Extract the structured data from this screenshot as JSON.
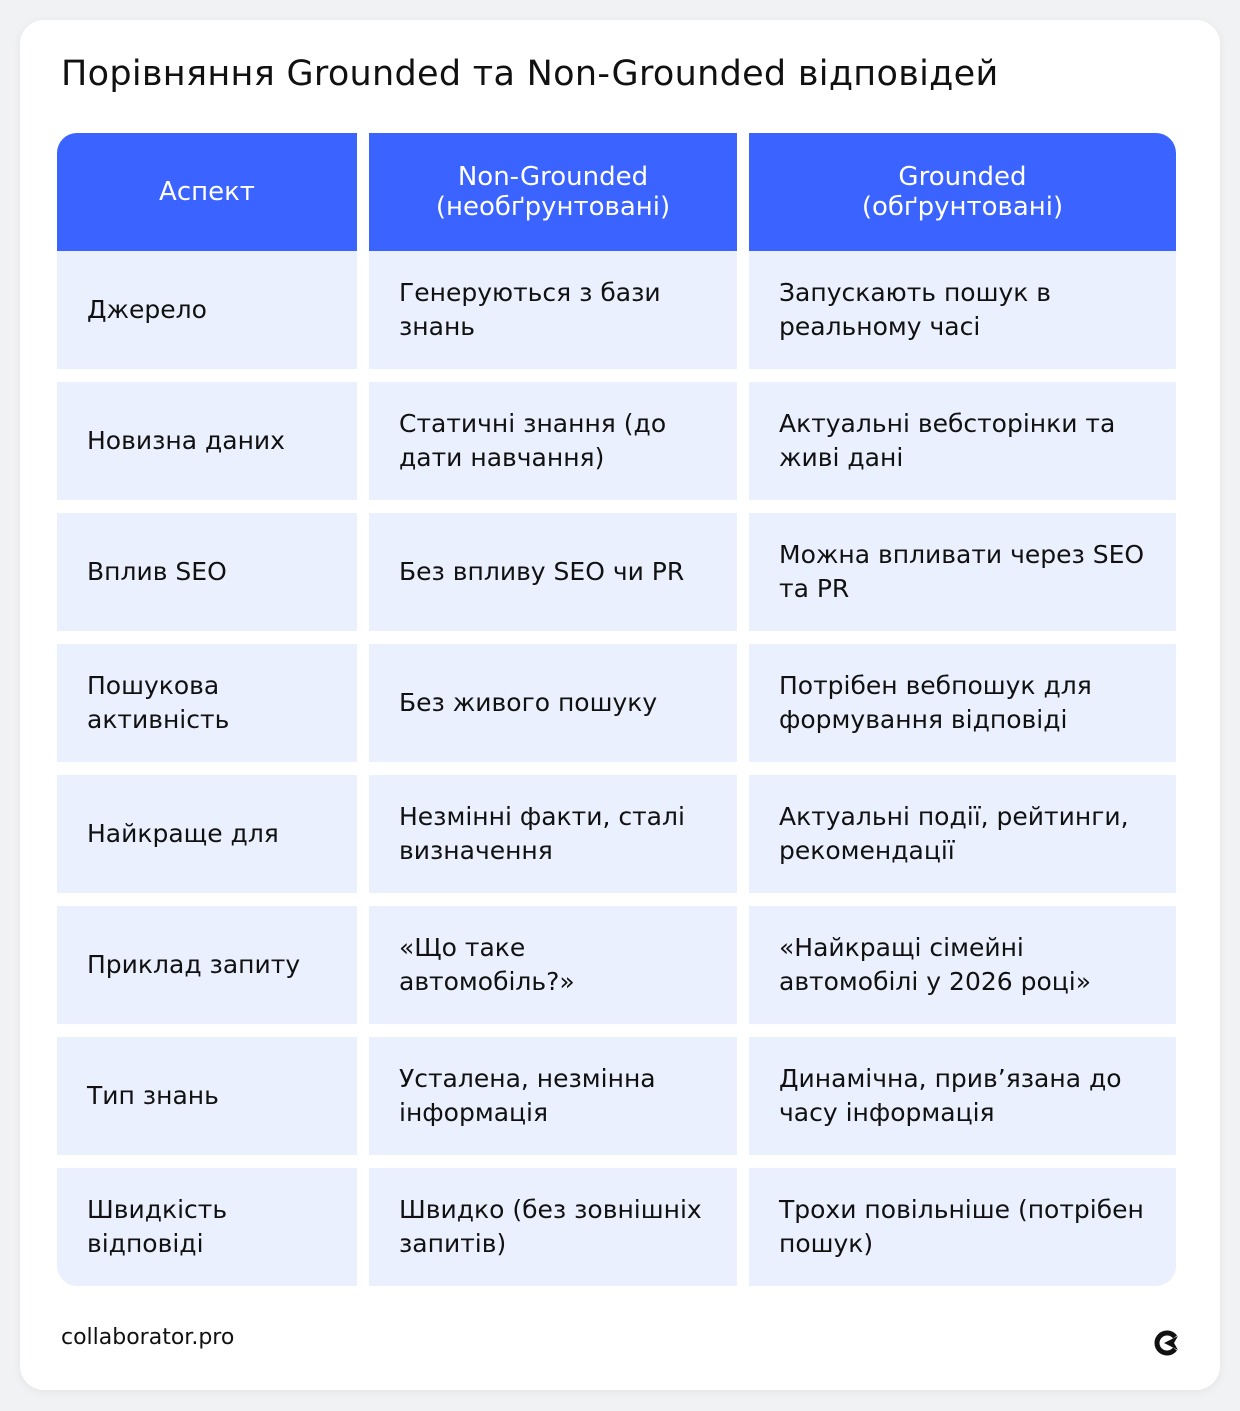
{
  "title": "Порівняння Grounded та Non-Grounded відповідей",
  "colors": {
    "header": "#3a63ff",
    "cell": "#ebf0fe"
  },
  "headers": [
    "Аспект",
    "Non-Grounded\n(необґрунтовані)",
    "Grounded\n(обґрунтовані)"
  ],
  "rows": [
    [
      "Джерело",
      "Генеруються з бази знань",
      "Запускають пошук в реальному часі"
    ],
    [
      "Новизна даних",
      "Статичні знання (до дати навчання)",
      "Актуальні вебсторінки та живі дані"
    ],
    [
      "Вплив SEO",
      "Без впливу SEO чи PR",
      "Можна впливати через SEO та PR"
    ],
    [
      "Пошукова активність",
      "Без живого пошуку",
      "Потрібен вебпошук для формування відповіді"
    ],
    [
      "Найкраще для",
      "Незмінні факти, сталі визначення",
      "Актуальні події, рейтинги, рекомендації"
    ],
    [
      "Приклад запиту",
      "«Що таке автомобіль?»",
      "«Найкращі сімейні автомобілі у 2026 році»"
    ],
    [
      "Тип знань",
      "Усталена, незмінна інформація",
      "Динамічна, прив’язана до часу інформація"
    ],
    [
      "Швидкість відповіді",
      "Швидко (без зовнішніх запитів)",
      "Трохи повільніше (потрібен пошук)"
    ]
  ],
  "footer": {
    "site": "collaborator.pro",
    "logo_icon": "collaborator-logo-icon"
  }
}
